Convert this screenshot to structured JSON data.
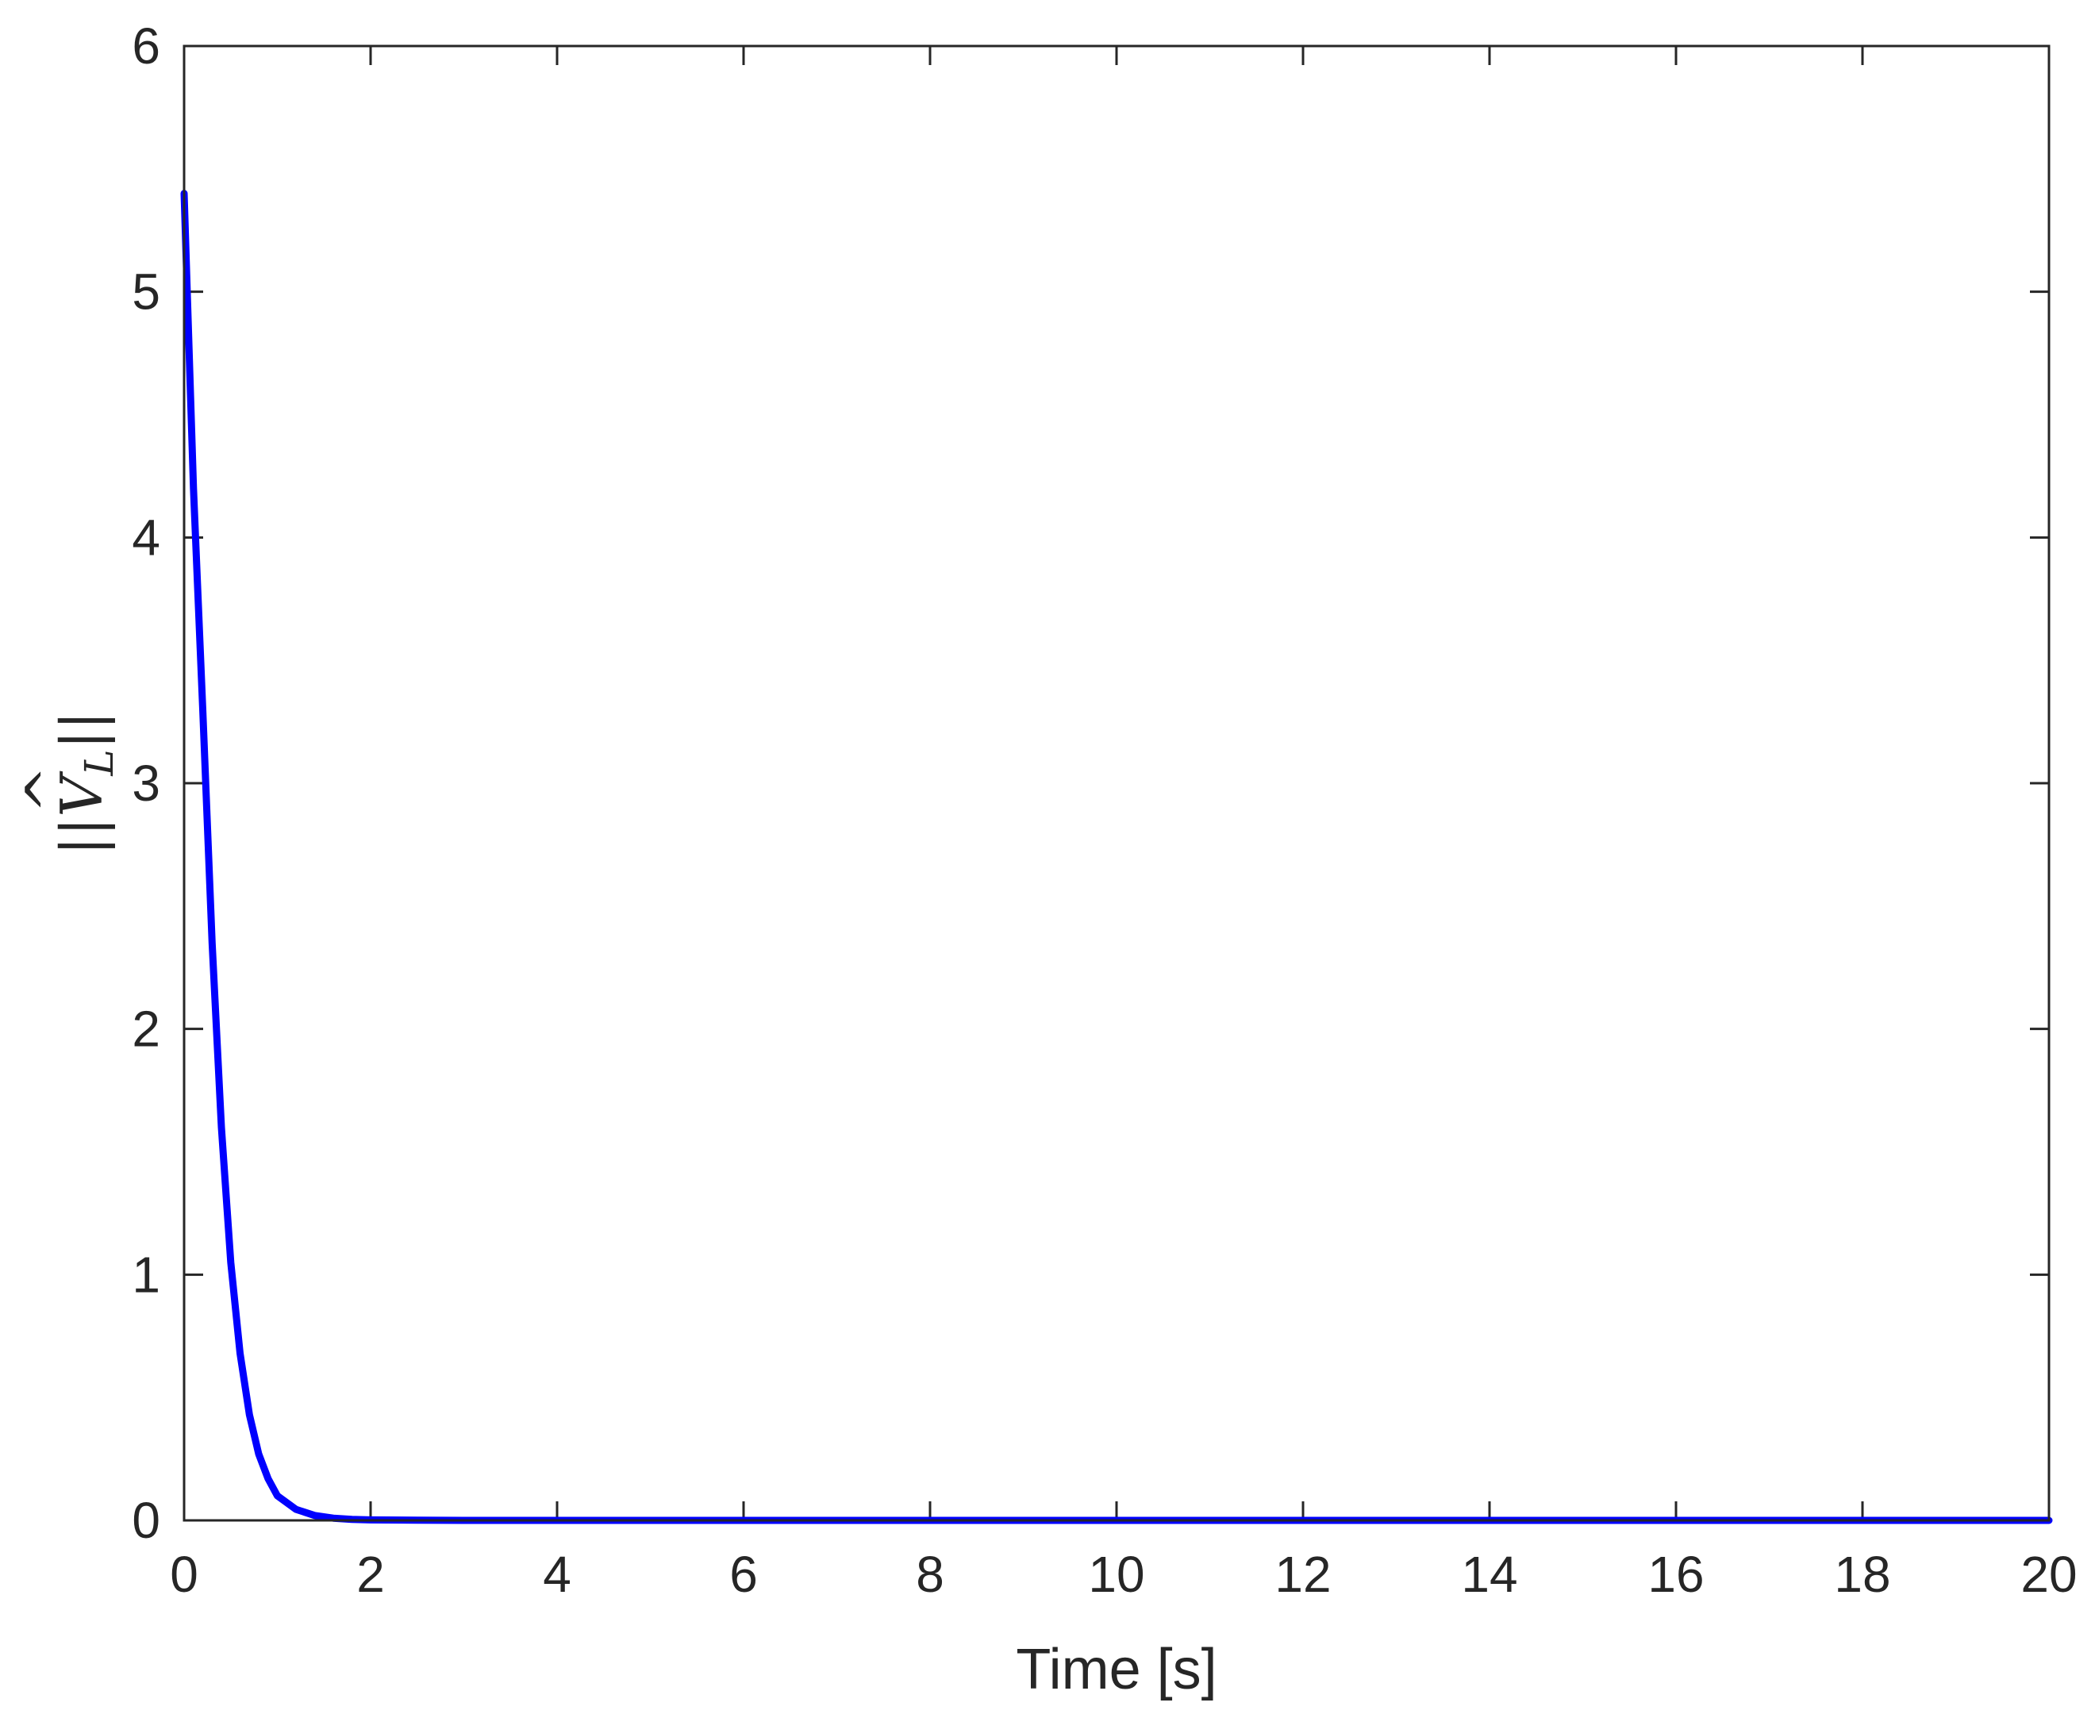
{
  "chart_data": {
    "type": "line",
    "xlabel": "Time [s]",
    "ylabel": "||V̂_L||",
    "ylabel_parts": {
      "bars_left": "||",
      "symbol": "V",
      "hat": "^",
      "subscript": "L",
      "bars_right": "||"
    },
    "xlim": [
      0,
      20
    ],
    "ylim": [
      0,
      6
    ],
    "xticks": [
      0,
      2,
      4,
      6,
      8,
      10,
      12,
      14,
      16,
      18,
      20
    ],
    "yticks": [
      0,
      1,
      2,
      3,
      4,
      5,
      6
    ],
    "grid": false,
    "series": [
      {
        "color": "#0000ff",
        "x": [
          0,
          0.1,
          0.2,
          0.3,
          0.4,
          0.5,
          0.6,
          0.7,
          0.8,
          0.9,
          1.0,
          1.2,
          1.4,
          1.6,
          1.8,
          2.0,
          2.5,
          3,
          4,
          6,
          8,
          10,
          12,
          14,
          16,
          18,
          20
        ],
        "y": [
          5.4,
          4.2,
          3.3,
          2.35,
          1.6,
          1.05,
          0.68,
          0.43,
          0.27,
          0.17,
          0.1,
          0.045,
          0.02,
          0.009,
          0.004,
          0.002,
          0.0005,
          0.0001,
          0,
          0,
          0,
          0,
          0,
          0,
          0,
          0,
          0
        ]
      }
    ]
  }
}
